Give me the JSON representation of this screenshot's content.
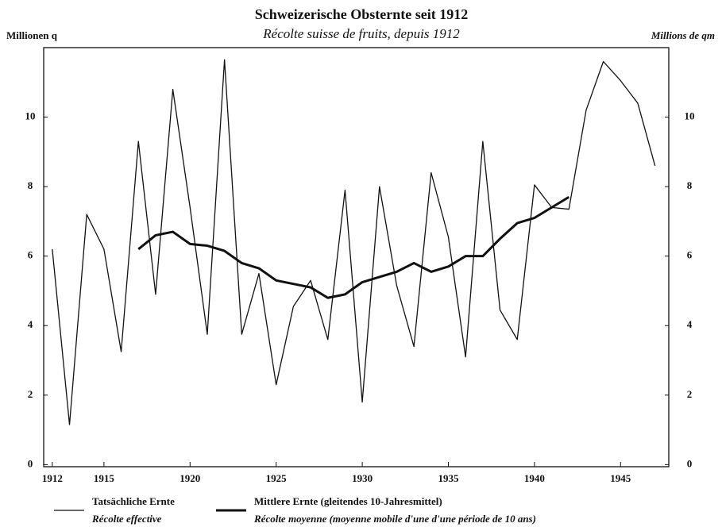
{
  "chart_data": {
    "type": "line",
    "title": "Schweizerische Obsternte seit 1912",
    "subtitle": "Récolte suisse de fruits, depuis 1912",
    "ylabel": "Millionen q",
    "y2label": "Millions de qm",
    "x": [
      1912,
      1913,
      1914,
      1915,
      1916,
      1917,
      1918,
      1919,
      1920,
      1921,
      1922,
      1923,
      1924,
      1925,
      1926,
      1927,
      1928,
      1929,
      1930,
      1931,
      1932,
      1933,
      1934,
      1935,
      1936,
      1937,
      1938,
      1939,
      1940,
      1941,
      1942,
      1943,
      1944,
      1945,
      1946,
      1947
    ],
    "series": [
      {
        "name": "Tatsächliche Ernte",
        "name_fr": "Récolte effective",
        "color": "#111111",
        "width": 1.3,
        "values": [
          6.2,
          1.15,
          7.2,
          6.2,
          3.25,
          9.3,
          4.9,
          10.8,
          7.4,
          3.75,
          11.65,
          3.75,
          5.5,
          2.3,
          4.55,
          5.3,
          3.6,
          7.9,
          1.8,
          8.0,
          5.15,
          3.4,
          8.4,
          6.55,
          3.1,
          9.3,
          4.45,
          3.6,
          8.05,
          7.4,
          7.35,
          10.2,
          11.6,
          11.05,
          10.4,
          8.6
        ]
      },
      {
        "name": "Mittlere Ernte (gleitendes 10-Jahresmittel)",
        "name_fr": "Récolte moyenne (moyenne mobile d'une d'une période de 10 ans)",
        "color": "#111111",
        "width": 3,
        "values": [
          null,
          null,
          null,
          null,
          null,
          6.2,
          6.6,
          6.7,
          6.35,
          6.3,
          6.15,
          5.8,
          5.65,
          5.3,
          5.2,
          5.1,
          4.8,
          4.9,
          5.25,
          5.4,
          5.55,
          5.8,
          5.55,
          5.7,
          6.0,
          6.0,
          6.5,
          6.95,
          7.1,
          7.4,
          7.7,
          null,
          null,
          null,
          null,
          null
        ]
      }
    ],
    "xlim": [
      1911.5,
      1947.8
    ],
    "xticks": [
      1912,
      1915,
      1920,
      1925,
      1930,
      1935,
      1940,
      1945
    ],
    "ylim": [
      -0.06,
      12
    ],
    "yticks": [
      0,
      2,
      4,
      6,
      8,
      10
    ],
    "y2lim": [
      -0.06,
      12
    ],
    "y2ticks": [
      0,
      2,
      4,
      6,
      8,
      10
    ]
  }
}
